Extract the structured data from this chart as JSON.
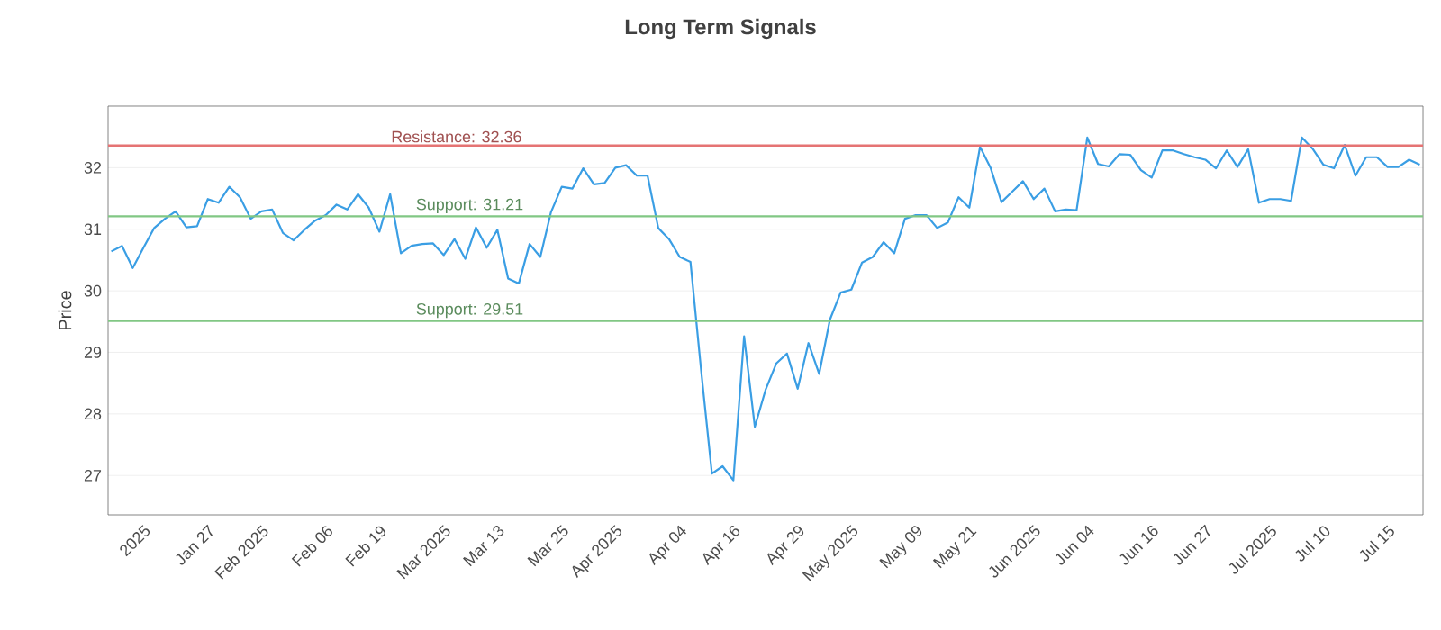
{
  "chart_data": {
    "type": "line",
    "title": "Long Term Signals",
    "ylabel": "Price",
    "categories": [
      null,
      null,
      null,
      "2025",
      null,
      null,
      null,
      null,
      null,
      "Jan 27",
      null,
      null,
      null,
      null,
      "Feb 2025",
      null,
      null,
      null,
      null,
      null,
      "Feb 06",
      null,
      null,
      null,
      null,
      "Feb 19",
      null,
      null,
      null,
      null,
      null,
      "Mar 2025",
      null,
      null,
      null,
      null,
      "Mar 13",
      null,
      null,
      null,
      null,
      null,
      "Mar 25",
      null,
      null,
      null,
      null,
      "Apr 2025",
      null,
      null,
      null,
      null,
      null,
      "Apr 04",
      null,
      null,
      null,
      null,
      "Apr 16",
      null,
      null,
      null,
      null,
      null,
      "Apr 29",
      null,
      null,
      null,
      null,
      "May 2025",
      null,
      null,
      null,
      null,
      null,
      "May 09",
      null,
      null,
      null,
      null,
      "May 21",
      null,
      null,
      null,
      null,
      null,
      "Jun 2025",
      null,
      null,
      null,
      null,
      "Jun 04",
      null,
      null,
      null,
      null,
      null,
      "Jun 16",
      null,
      null,
      null,
      null,
      "Jun 27",
      null,
      null,
      null,
      null,
      null,
      "Jul 2025",
      null,
      null,
      null,
      null,
      "Jul 10",
      null,
      null,
      null,
      null,
      null,
      "Jul 15",
      null,
      null,
      null
    ],
    "series": [
      {
        "color": "#3a9ee4",
        "values": [
          30.64,
          30.73,
          30.37,
          30.7,
          31.02,
          31.17,
          31.29,
          31.03,
          31.05,
          31.49,
          31.43,
          31.69,
          31.52,
          31.17,
          31.29,
          31.32,
          30.94,
          30.82,
          30.99,
          31.14,
          31.23,
          31.4,
          31.32,
          31.57,
          31.35,
          30.96,
          31.57,
          30.61,
          30.73,
          30.76,
          30.77,
          30.58,
          30.84,
          30.52,
          31.03,
          30.7,
          30.99,
          30.2,
          30.12,
          30.76,
          30.55,
          31.28,
          31.69,
          31.66,
          31.99,
          31.73,
          31.75,
          32.0,
          32.04,
          31.87,
          31.87,
          31.02,
          30.84,
          30.55,
          30.47,
          28.7,
          27.03,
          27.15,
          26.92,
          29.26,
          27.79,
          28.39,
          28.82,
          28.98,
          28.41,
          29.15,
          28.65,
          29.53,
          29.97,
          30.02,
          30.46,
          30.55,
          30.79,
          30.61,
          31.17,
          31.23,
          31.23,
          31.02,
          31.11,
          31.52,
          31.35,
          32.34,
          31.99,
          31.44,
          31.61,
          31.78,
          31.49,
          31.66,
          31.29,
          31.32,
          31.31,
          32.49,
          32.06,
          32.02,
          32.22,
          32.21,
          31.96,
          31.84,
          32.28,
          32.28,
          32.22,
          32.17,
          32.13,
          31.99,
          32.28,
          32.01,
          32.3,
          31.43,
          31.49,
          31.49,
          31.46,
          32.49,
          32.31,
          32.05,
          31.99,
          32.37,
          31.87,
          32.17,
          32.17,
          32.01,
          32.01,
          32.13,
          32.05
        ]
      }
    ],
    "ylim": [
      26.36,
      33.0
    ],
    "yticks": [
      27,
      28,
      29,
      30,
      31,
      32
    ],
    "grid": "y",
    "marker": "none",
    "line_style": "solid",
    "ref_lines": [
      {
        "axis": "y",
        "value": 32.36,
        "label": "Resistance: 32.36",
        "color": "#e57373"
      },
      {
        "axis": "y",
        "value": 31.21,
        "label": "Support: 31.21",
        "color": "#81c784"
      },
      {
        "axis": "y",
        "value": 29.51,
        "label": "Support: 29.51",
        "color": "#81c784"
      }
    ]
  }
}
